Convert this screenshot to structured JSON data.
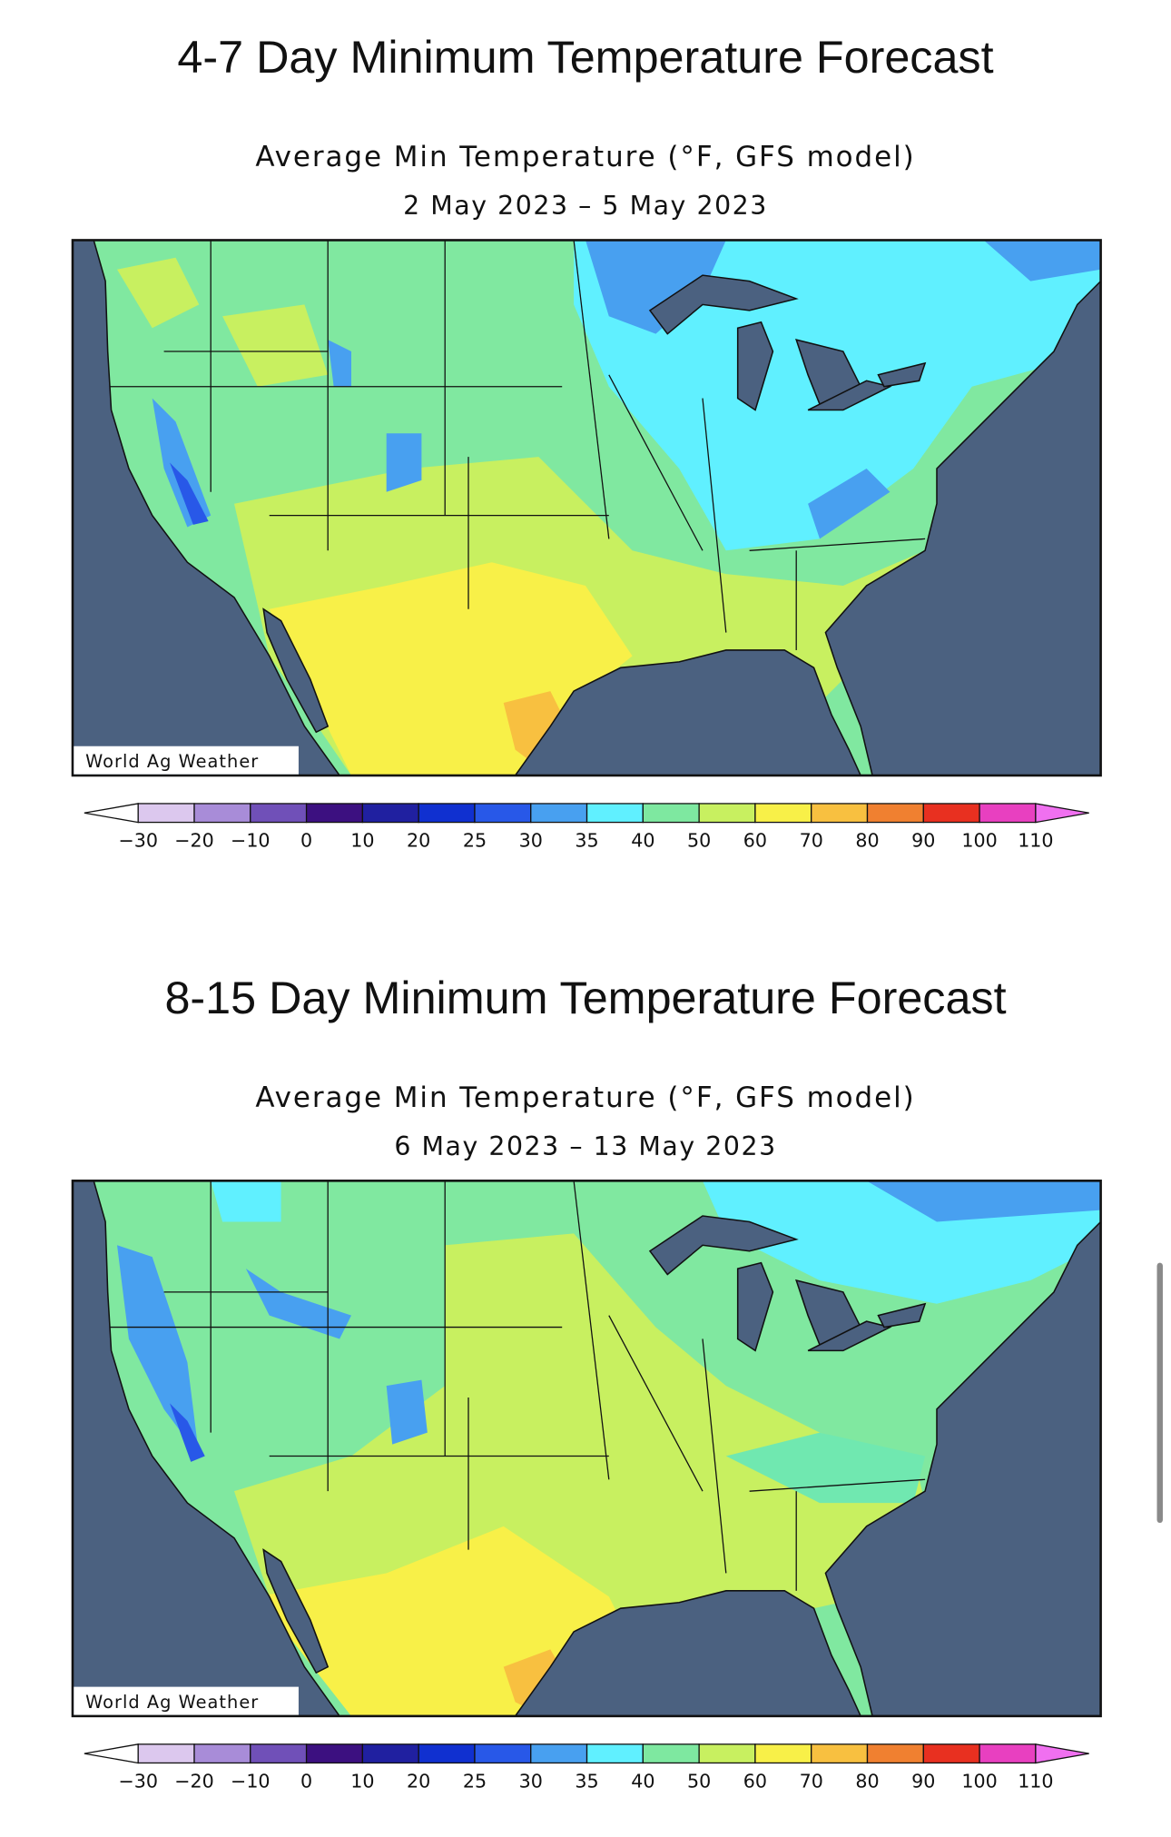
{
  "panels": [
    {
      "title": "4-7 Day Minimum Temperature Forecast",
      "subtitle": "Average Min Temperature (°F, GFS model)",
      "dates": "2 May 2023 – 5 May 2023",
      "credit": "World Ag Weather",
      "scale_labels": [
        "−30",
        "−20",
        "−10",
        "0",
        "10",
        "20",
        "25",
        "30",
        "35",
        "40",
        "50",
        "60",
        "70",
        "80",
        "90",
        "100",
        "110"
      ]
    },
    {
      "title": "8-15 Day Minimum Temperature Forecast",
      "subtitle": "Average Min Temperature (°F, GFS model)",
      "dates": "6 May 2023 – 13 May 2023",
      "credit": "World Ag Weather",
      "scale_labels": [
        "−30",
        "−20",
        "−10",
        "0",
        "10",
        "20",
        "25",
        "30",
        "35",
        "40",
        "50",
        "60",
        "70",
        "80",
        "90",
        "100",
        "110"
      ]
    }
  ]
}
